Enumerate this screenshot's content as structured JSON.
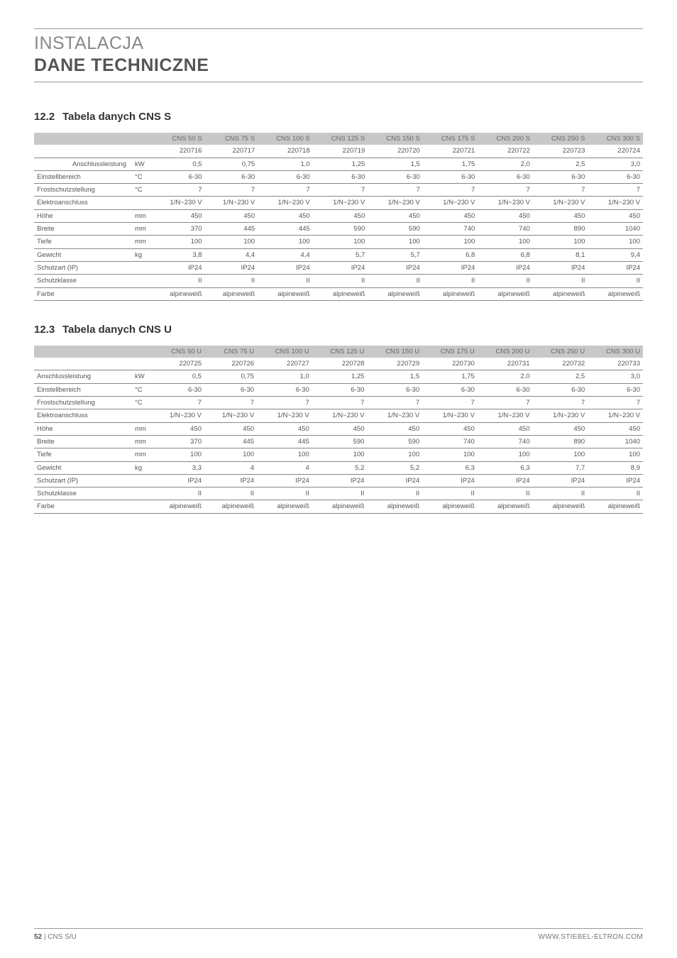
{
  "header": {
    "line1": "INSTALACJA",
    "line2": "DANE TECHNICZNE"
  },
  "section_s": {
    "number": "12.2",
    "title": "Tabela danych CNS S",
    "columns": [
      "CNS 50 S",
      "CNS 75 S",
      "CNS 100 S",
      "CNS 125 S",
      "CNS 150 S",
      "CNS 175 S",
      "CNS 200 S",
      "CNS 250 S",
      "CNS 300 S"
    ],
    "codes": [
      "220716",
      "220717",
      "220718",
      "220719",
      "220720",
      "220721",
      "220722",
      "220723",
      "220724"
    ],
    "first_row_right_align": true,
    "rows": [
      {
        "label": "Anschlussleistung",
        "unit": "kW",
        "v": [
          "0,5",
          "0,75",
          "1,0",
          "1,25",
          "1,5",
          "1,75",
          "2,0",
          "2,5",
          "3,0"
        ]
      },
      {
        "label": "Einstellbereich",
        "unit": "°C",
        "v": [
          "6-30",
          "6-30",
          "6-30",
          "6-30",
          "6-30",
          "6-30",
          "6-30",
          "6-30",
          "6-30"
        ]
      },
      {
        "label": "Frostschutzstellung",
        "unit": "°C",
        "v": [
          "7",
          "7",
          "7",
          "7",
          "7",
          "7",
          "7",
          "7",
          "7"
        ]
      },
      {
        "label": "Elektroanschluss",
        "unit": "",
        "v": [
          "1/N~230 V",
          "1/N~230 V",
          "1/N~230 V",
          "1/N~230 V",
          "1/N~230 V",
          "1/N~230 V",
          "1/N~230 V",
          "1/N~230 V",
          "1/N~230 V"
        ]
      },
      {
        "label": "Höhe",
        "unit": "mm",
        "v": [
          "450",
          "450",
          "450",
          "450",
          "450",
          "450",
          "450",
          "450",
          "450"
        ]
      },
      {
        "label": "Breite",
        "unit": "mm",
        "v": [
          "370",
          "445",
          "445",
          "590",
          "590",
          "740",
          "740",
          "890",
          "1040"
        ]
      },
      {
        "label": "Tiefe",
        "unit": "mm",
        "v": [
          "100",
          "100",
          "100",
          "100",
          "100",
          "100",
          "100",
          "100",
          "100"
        ]
      },
      {
        "label": "Gewicht",
        "unit": "kg",
        "v": [
          "3,8",
          "4,4",
          "4,4",
          "5,7",
          "5,7",
          "6,8",
          "6,8",
          "8,1",
          "9,4"
        ]
      },
      {
        "label": "Schutzart (IP)",
        "unit": "",
        "v": [
          "IP24",
          "IP24",
          "IP24",
          "IP24",
          "IP24",
          "IP24",
          "IP24",
          "IP24",
          "IP24"
        ]
      },
      {
        "label": "Schutzklasse",
        "unit": "",
        "v": [
          "II",
          "II",
          "II",
          "II",
          "II",
          "II",
          "II",
          "II",
          "II"
        ]
      },
      {
        "label": "Farbe",
        "unit": "",
        "v": [
          "alpineweiß",
          "alpineweiß",
          "alpineweiß",
          "alpineweiß",
          "alpineweiß",
          "alpineweiß",
          "alpineweiß",
          "alpineweiß",
          "alpineweiß"
        ]
      }
    ]
  },
  "section_u": {
    "number": "12.3",
    "title": "Tabela danych CNS U",
    "columns": [
      "CNS 50 U",
      "CNS 75 U",
      "CNS 100 U",
      "CNS 125 U",
      "CNS 150 U",
      "CNS 175 U",
      "CNS 200 U",
      "CNS 250 U",
      "CNS 300 U"
    ],
    "codes": [
      "220725",
      "220726",
      "220727",
      "220728",
      "220729",
      "220730",
      "220731",
      "220732",
      "220733"
    ],
    "first_row_right_align": false,
    "rows": [
      {
        "label": "Anschlussleistung",
        "unit": "kW",
        "v": [
          "0,5",
          "0,75",
          "1,0",
          "1,25",
          "1,5",
          "1,75",
          "2,0",
          "2,5",
          "3,0"
        ]
      },
      {
        "label": "Einstellbereich",
        "unit": "°C",
        "v": [
          "6-30",
          "6-30",
          "6-30",
          "6-30",
          "6-30",
          "6-30",
          "6-30",
          "6-30",
          "6-30"
        ]
      },
      {
        "label": "Frostschutzstellung",
        "unit": "°C",
        "v": [
          "7",
          "7",
          "7",
          "7",
          "7",
          "7",
          "7",
          "7",
          "7"
        ]
      },
      {
        "label": "Elektroanschluss",
        "unit": "",
        "v": [
          "1/N~230 V",
          "1/N~230 V",
          "1/N~230 V",
          "1/N~230 V",
          "1/N~230 V",
          "1/N~230 V",
          "1/N~230 V",
          "1/N~230 V",
          "1/N~230 V"
        ]
      },
      {
        "label": "Höhe",
        "unit": "mm",
        "v": [
          "450",
          "450",
          "450",
          "450",
          "450",
          "450",
          "450",
          "450",
          "450"
        ]
      },
      {
        "label": "Breite",
        "unit": "mm",
        "v": [
          "370",
          "445",
          "445",
          "590",
          "590",
          "740",
          "740",
          "890",
          "1040"
        ]
      },
      {
        "label": "Tiefe",
        "unit": "mm",
        "v": [
          "100",
          "100",
          "100",
          "100",
          "100",
          "100",
          "100",
          "100",
          "100"
        ]
      },
      {
        "label": "Gewicht",
        "unit": "kg",
        "v": [
          "3,3",
          "4",
          "4",
          "5,2",
          "5,2",
          "6,3",
          "6,3",
          "7,7",
          "8,9"
        ]
      },
      {
        "label": "Schutzart (IP)",
        "unit": "",
        "v": [
          "IP24",
          "IP24",
          "IP24",
          "IP24",
          "IP24",
          "IP24",
          "IP24",
          "IP24",
          "IP24"
        ]
      },
      {
        "label": "Schutzklasse",
        "unit": "",
        "v": [
          "II",
          "II",
          "II",
          "II",
          "II",
          "II",
          "II",
          "II",
          "II"
        ]
      },
      {
        "label": "Farbe",
        "unit": "",
        "v": [
          "alpineweiß",
          "alpineweiß",
          "alpineweiß",
          "alpineweiß",
          "alpineweiß",
          "alpineweiß",
          "alpineweiß",
          "alpineweiß",
          "alpineweiß"
        ]
      }
    ]
  },
  "footer": {
    "page": "52",
    "sep": "|",
    "product": "CNS S/U",
    "url": "WWW.STIEBEL-ELTRON.COM"
  }
}
